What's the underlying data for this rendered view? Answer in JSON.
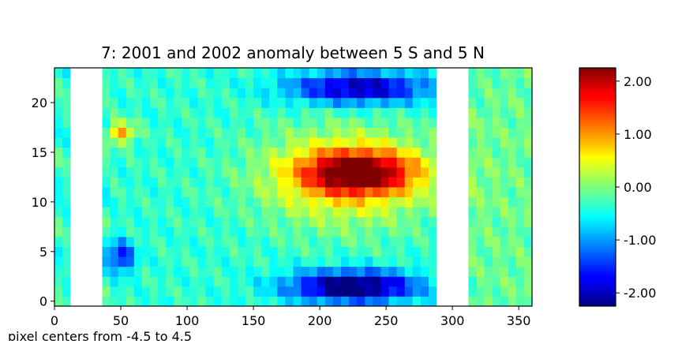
{
  "chart_data": {
    "type": "heatmap",
    "title": "7: 2001 and 2002 anomaly between 5 S and 5 N",
    "xlabel": "",
    "ylabel": "",
    "note": "pixel centers from  -4.5 to   4.5",
    "xlim": [
      0,
      360
    ],
    "ylim": [
      -0.5,
      23.5
    ],
    "x_ticks": [
      0,
      50,
      100,
      150,
      200,
      250,
      300,
      350
    ],
    "y_ticks": [
      0,
      5,
      10,
      15,
      20
    ],
    "x_tick_labels": [
      "0",
      "50",
      "100",
      "150",
      "200",
      "250",
      "300",
      "350"
    ],
    "y_tick_labels": [
      "0",
      "5",
      "10",
      "15",
      "20"
    ],
    "rows": 24,
    "columns": 60,
    "cell_width_deg": 6,
    "missing_lon_ranges": [
      [
        12,
        36
      ],
      [
        288,
        312
      ]
    ],
    "colormap": "jet",
    "color_range": [
      -2.25,
      2.25
    ],
    "colorbar": {
      "ticks": [
        2.0,
        1.0,
        0.0,
        -1.0,
        -2.0
      ],
      "tick_labels": [
        "2.00",
        "1.00",
        "0.00",
        "-1.00",
        "-2.00"
      ]
    },
    "anomaly_features": [
      {
        "description": "warm core",
        "lon": [
          190,
          270
        ],
        "rows": [
          11,
          15
        ],
        "value": 2.0
      },
      {
        "description": "warm band",
        "lon": [
          160,
          280
        ],
        "rows": [
          8,
          17
        ],
        "value": 1.0
      },
      {
        "description": "cold core",
        "lon": [
          180,
          270
        ],
        "rows": [
          0,
          3
        ],
        "value": -2.0
      },
      {
        "description": "cold upper band",
        "lon": [
          180,
          280
        ],
        "rows": [
          20,
          23
        ],
        "value": -1.6
      },
      {
        "description": "warm western patch",
        "lon": [
          40,
          60
        ],
        "rows": [
          16,
          18
        ],
        "value": 1.2
      },
      {
        "description": "cool western patch",
        "lon": [
          40,
          60
        ],
        "rows": [
          3,
          6
        ],
        "value": -1.2
      }
    ]
  }
}
